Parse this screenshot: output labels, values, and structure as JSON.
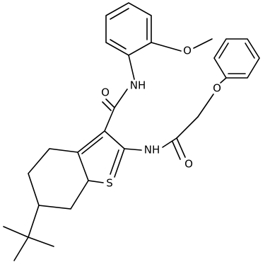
{
  "atoms": [
    "O",
    "NH",
    "O",
    "O",
    "NH",
    "O",
    "S"
  ]
}
